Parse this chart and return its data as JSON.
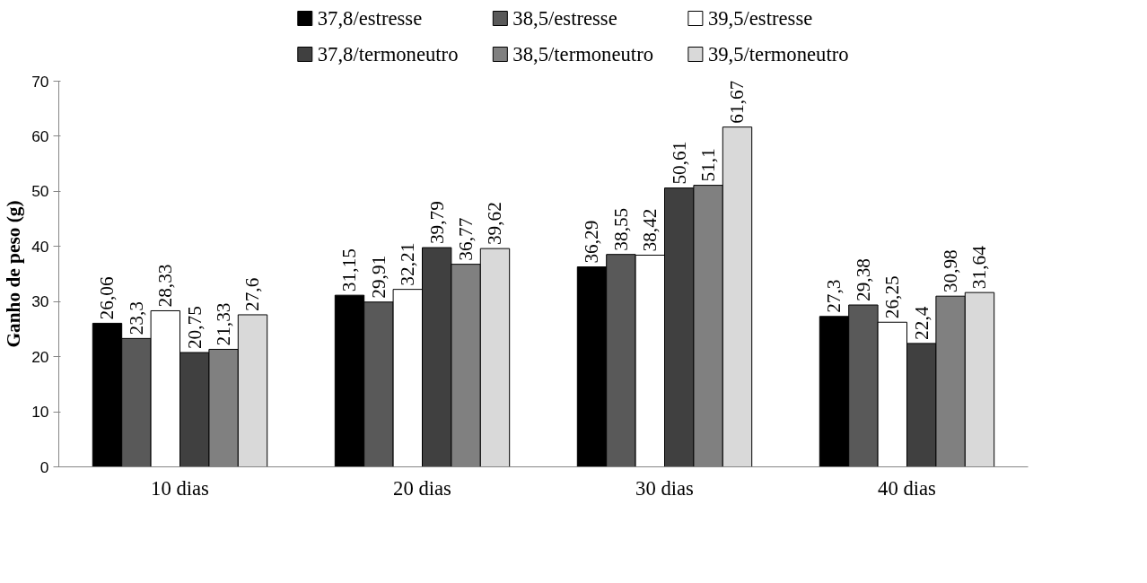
{
  "chart_data": {
    "type": "bar",
    "ylabel": "Ganho de peso (g)",
    "categories": [
      "10 dias",
      "20 dias",
      "30 dias",
      "40 dias"
    ],
    "series": [
      {
        "name": "37,8/estresse",
        "color": "#000000",
        "values": [
          26.06,
          31.15,
          36.29,
          27.3
        ],
        "value_labels": [
          "26,06",
          "31,15",
          "36,29",
          "27,3"
        ]
      },
      {
        "name": "38,5/estresse",
        "color": "#595959",
        "values": [
          23.3,
          29.91,
          38.55,
          29.38
        ],
        "value_labels": [
          "23,3",
          "29,91",
          "38,55",
          "29,38"
        ]
      },
      {
        "name": "39,5/estresse",
        "color": "#ffffff",
        "values": [
          28.33,
          32.21,
          38.42,
          26.25
        ],
        "value_labels": [
          "28,33",
          "32,21",
          "38,42",
          "26,25"
        ]
      },
      {
        "name": "37,8/termoneutro",
        "color": "#404040",
        "values": [
          20.75,
          39.79,
          50.61,
          22.4
        ],
        "value_labels": [
          "20,75",
          "39,79",
          "50,61",
          "22,4"
        ]
      },
      {
        "name": "38,5/termoneutro",
        "color": "#808080",
        "values": [
          21.33,
          36.77,
          51.1,
          30.98
        ],
        "value_labels": [
          "21,33",
          "36,77",
          "51,1",
          "30,98"
        ]
      },
      {
        "name": "39,5/termoneutro",
        "color": "#d9d9d9",
        "values": [
          27.6,
          39.62,
          61.67,
          31.64
        ],
        "value_labels": [
          "27,6",
          "39,62",
          "61,67",
          "31,64"
        ]
      }
    ],
    "ylim": [
      0,
      70
    ],
    "yticks": [
      0,
      10,
      20,
      30,
      40,
      50,
      60,
      70
    ],
    "legend": "top"
  }
}
